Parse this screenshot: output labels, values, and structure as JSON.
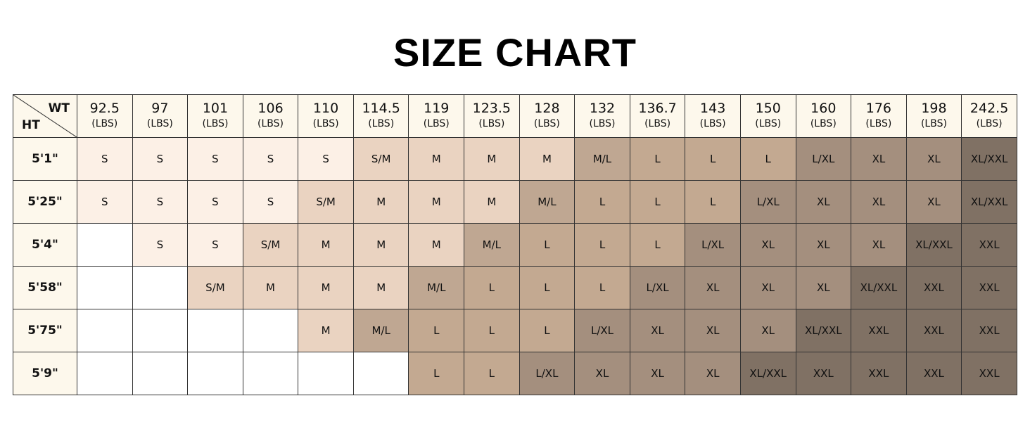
{
  "title": "SIZE CHART",
  "corner": {
    "weight_label": "WT",
    "height_label": "HT"
  },
  "unit": "(LBS)",
  "weights": [
    "92.5",
    "97",
    "101",
    "106",
    "110",
    "114.5",
    "119",
    "123.5",
    "128",
    "132",
    "136.7",
    "143",
    "150",
    "160",
    "176",
    "198",
    "242.5"
  ],
  "size_colors": {
    "S": "#fcf0e6",
    "S/M": "#ead3c1",
    "M": "#ead3c1",
    "M/L": "#bfa792",
    "L": "#c3a991",
    "L/XL": "#a48f7e",
    "XL": "#a48f7e",
    "XL/XXL": "#807164",
    "XXL": "#807164"
  },
  "rows": [
    {
      "height": "5'1\"",
      "sizes": [
        "S",
        "S",
        "S",
        "S",
        "S",
        "S/M",
        "M",
        "M",
        "M",
        "M/L",
        "L",
        "L",
        "L",
        "L/XL",
        "XL",
        "XL",
        "XL/XXL"
      ]
    },
    {
      "height": "5'25\"",
      "sizes": [
        "S",
        "S",
        "S",
        "S",
        "S/M",
        "M",
        "M",
        "M",
        "M/L",
        "L",
        "L",
        "L",
        "L/XL",
        "XL",
        "XL",
        "XL",
        "XL/XXL"
      ]
    },
    {
      "height": "5'4\"",
      "sizes": [
        "",
        "S",
        "S",
        "S/M",
        "M",
        "M",
        "M",
        "M/L",
        "L",
        "L",
        "L",
        "L/XL",
        "XL",
        "XL",
        "XL",
        "XL/XXL",
        "XXL"
      ]
    },
    {
      "height": "5'58\"",
      "sizes": [
        "",
        "",
        "S/M",
        "M",
        "M",
        "M",
        "M/L",
        "L",
        "L",
        "L",
        "L/XL",
        "XL",
        "XL",
        "XL",
        "XL/XXL",
        "XXL",
        "XXL"
      ]
    },
    {
      "height": "5'75\"",
      "sizes": [
        "",
        "",
        "",
        "",
        "M",
        "M/L",
        "L",
        "L",
        "L",
        "L/XL",
        "XL",
        "XL",
        "XL",
        "XL/XXL",
        "XXL",
        "XXL",
        "XXL"
      ]
    },
    {
      "height": "5'9\"",
      "sizes": [
        "",
        "",
        "",
        "",
        "",
        "",
        "L",
        "L",
        "L/XL",
        "XL",
        "XL",
        "XL",
        "XL/XXL",
        "XXL",
        "XXL",
        "XXL",
        "XXL"
      ]
    }
  ]
}
